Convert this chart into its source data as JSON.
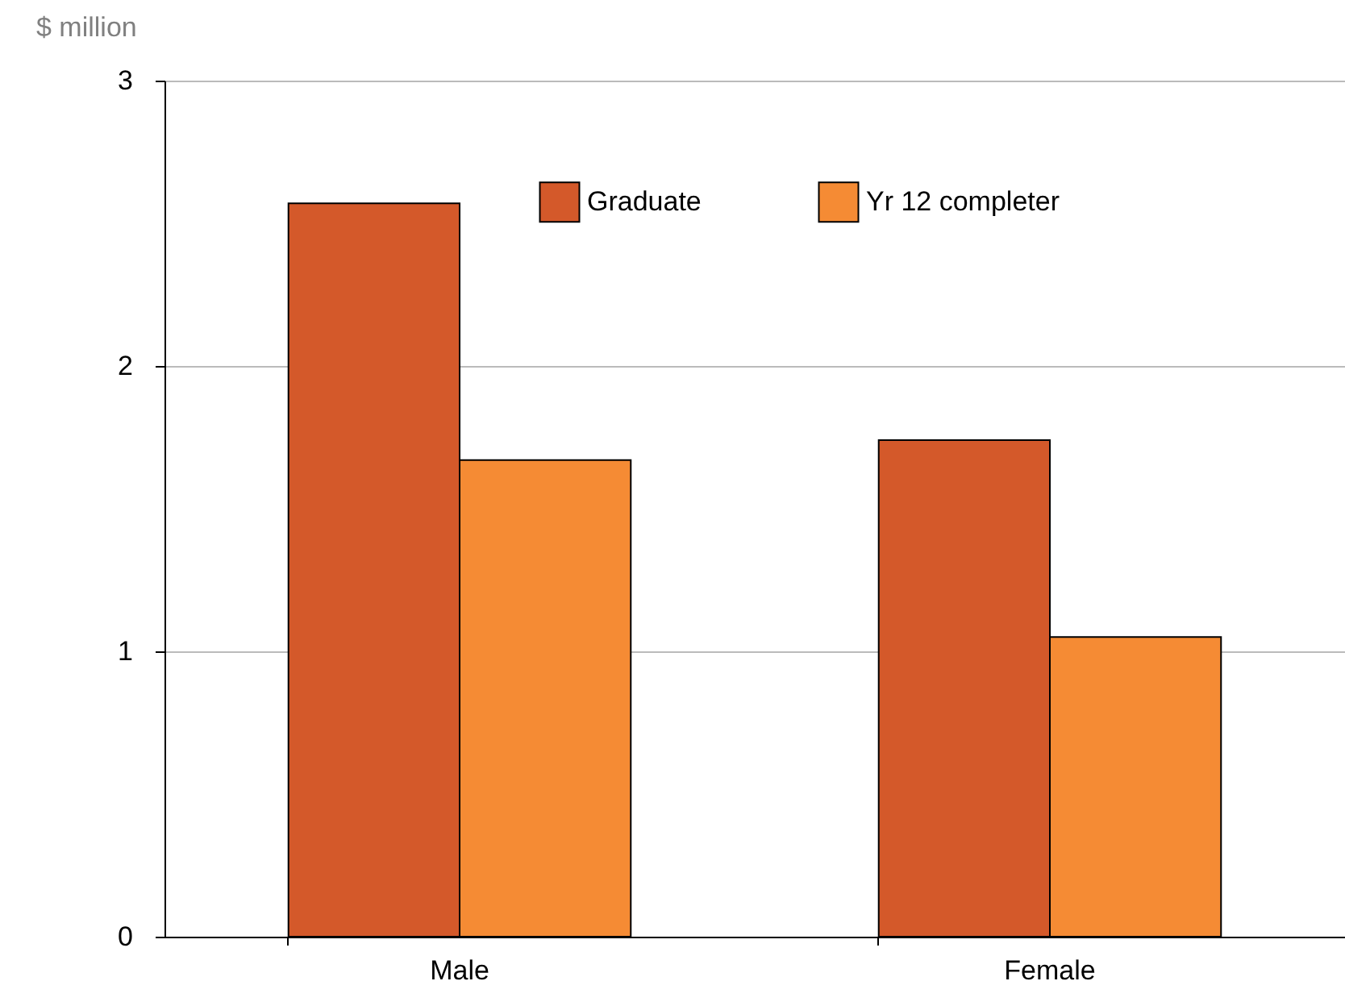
{
  "chart_data": {
    "type": "bar",
    "ylabel": "$ million",
    "categories": [
      "Male",
      "Female"
    ],
    "series": [
      {
        "name": "Graduate",
        "color": "#d4592a",
        "values": [
          2.57,
          1.74
        ]
      },
      {
        "name": "Yr 12 completer",
        "color": "#f58b34",
        "values": [
          1.67,
          1.05
        ]
      }
    ],
    "ylim": [
      0,
      3
    ],
    "yticks": [
      0,
      1,
      2,
      3
    ],
    "grid": "y",
    "legend": "top right"
  }
}
